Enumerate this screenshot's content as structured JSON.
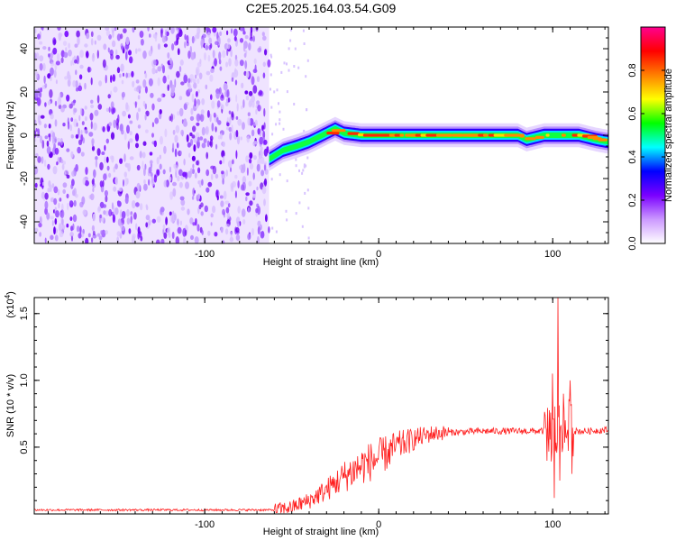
{
  "title": "C2E5.2025.164.03.54.G09",
  "chart_data": [
    {
      "type": "heatmap",
      "name": "spectrogram",
      "xlabel": "Height of straight line (km)",
      "ylabel": "Frequency (Hz)",
      "xlim": [
        -198,
        132
      ],
      "ylim": [
        -50,
        50
      ],
      "xticks": [
        -100,
        0,
        100
      ],
      "yticks": [
        -40,
        -20,
        0,
        20,
        40
      ],
      "colorbar": {
        "label": "Normalized spectral amplitude",
        "range": [
          0,
          1
        ],
        "ticks": [
          "0.0",
          "0.2",
          "0.4",
          "0.6",
          "0.8"
        ],
        "tick_values": [
          0,
          0.2,
          0.4,
          0.6,
          0.8
        ],
        "colors": [
          "#ffffff",
          "#cc99ff",
          "#7a00ff",
          "#0000ff",
          "#00ffff",
          "#00ff00",
          "#ffff00",
          "#ff8000",
          "#ff0000",
          "#ff0090"
        ]
      },
      "noise_region_x": [
        -198,
        -63
      ],
      "ridge": {
        "x": [
          -63,
          -55,
          -47,
          -40,
          -35,
          -30,
          -25,
          -20,
          -10,
          0,
          20,
          50,
          80,
          85,
          90,
          95,
          100,
          105,
          110,
          115,
          120,
          125,
          132
        ],
        "freq": [
          -11,
          -7,
          -5,
          -3,
          -1,
          1,
          3,
          1,
          0,
          0,
          0,
          0,
          0,
          -2,
          -1,
          0,
          0,
          0,
          0,
          0,
          -1,
          -2,
          -3
        ]
      }
    },
    {
      "type": "line",
      "name": "snr",
      "xlabel": "Height of straight line (km)",
      "ylabel": "SNR (10 * v/v)",
      "scale_label": "(x10",
      "scale_exp": "4",
      "scale_close": ")",
      "xlim": [
        -198,
        132
      ],
      "ylim": [
        0,
        1.62
      ],
      "xticks": [
        -100,
        0,
        100
      ],
      "yticks": [
        0.5,
        1.0,
        1.5
      ],
      "ytick_labels": [
        "0.5",
        "1.0",
        "1.5"
      ],
      "color": "#ff2020",
      "envelope": {
        "x": [
          -198,
          -60,
          -50,
          -40,
          -30,
          -20,
          -10,
          0,
          10,
          20,
          30,
          40,
          60,
          80,
          95,
          100,
          105,
          110,
          120,
          132
        ],
        "snr": [
          0.03,
          0.03,
          0.05,
          0.1,
          0.18,
          0.28,
          0.36,
          0.42,
          0.5,
          0.56,
          0.6,
          0.61,
          0.62,
          0.62,
          0.62,
          0.62,
          0.62,
          0.62,
          0.62,
          0.63
        ]
      },
      "spikes": [
        {
          "x": 100,
          "snr": 1.05
        },
        {
          "x": 101,
          "snr": 0.12
        },
        {
          "x": 103,
          "snr": 1.62
        },
        {
          "x": 104,
          "snr": 0.25
        },
        {
          "x": 106,
          "snr": 0.9
        },
        {
          "x": 110,
          "snr": 1.0
        },
        {
          "x": 111,
          "snr": 0.3
        }
      ]
    }
  ]
}
